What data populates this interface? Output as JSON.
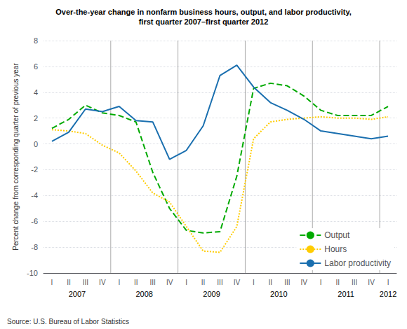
{
  "chart_data": {
    "type": "line",
    "title": "Over-the-year change in nonfarm business hours, output, and labor productivity,",
    "subtitle": "first quarter 2007–first quarter 2012",
    "ylabel": "Percent change from corresponding quarter of previous year",
    "annotations": [
      "Source: U.S. Bureau of Labor Statistics"
    ],
    "categories": [
      "I",
      "II",
      "III",
      "IV",
      "I",
      "II",
      "III",
      "IV",
      "I",
      "II",
      "III",
      "IV",
      "I",
      "II",
      "III",
      "IV",
      "I",
      "II",
      "III",
      "IV",
      "I"
    ],
    "category_groups": [
      {
        "label": "2007",
        "size": 4
      },
      {
        "label": "2008",
        "size": 4
      },
      {
        "label": "2009",
        "size": 4
      },
      {
        "label": "2010",
        "size": 4
      },
      {
        "label": "2011",
        "size": 4
      },
      {
        "label": "2012",
        "size": 1
      }
    ],
    "series": [
      {
        "name": "Output",
        "color": "#00aa00",
        "line_style": "dashed",
        "values": [
          1.2,
          1.9,
          3.0,
          2.4,
          2.2,
          1.7,
          -2.2,
          -5.0,
          -6.7,
          -6.9,
          -6.8,
          -2.5,
          4.3,
          4.7,
          4.5,
          3.7,
          2.6,
          2.2,
          2.2,
          2.2,
          2.9
        ]
      },
      {
        "name": "Hours",
        "color": "#ffcc00",
        "line_style": "dotted",
        "values": [
          1.1,
          1.0,
          0.8,
          -0.1,
          -0.7,
          -2.1,
          -3.8,
          -4.5,
          -6.4,
          -8.3,
          -8.4,
          -6.4,
          0.4,
          1.7,
          1.9,
          2.0,
          2.1,
          2.0,
          2.0,
          1.9,
          2.1
        ]
      },
      {
        "name": "Labor productivity",
        "color": "#1a6faf",
        "line_style": "solid",
        "values": [
          0.2,
          0.9,
          2.7,
          2.5,
          2.9,
          1.8,
          1.7,
          -1.2,
          -0.5,
          1.4,
          5.3,
          6.1,
          4.4,
          3.2,
          2.6,
          1.9,
          1.0,
          0.8,
          0.6,
          0.4,
          0.6
        ]
      }
    ],
    "ylim": [
      -10,
      8
    ],
    "yticks": [
      -10,
      -8,
      -6,
      -4,
      -2,
      0,
      2,
      4,
      6,
      8
    ],
    "grid": true,
    "legend": "lower right"
  }
}
